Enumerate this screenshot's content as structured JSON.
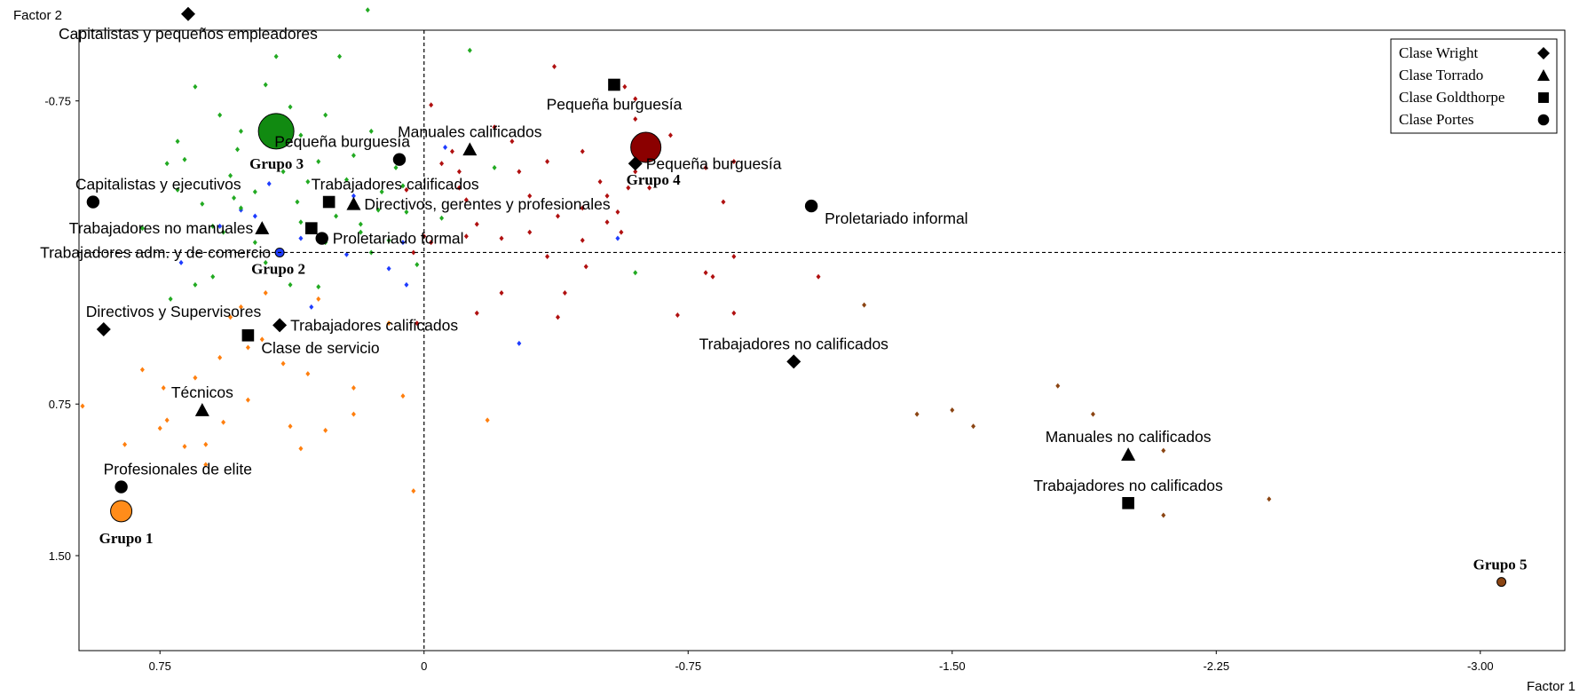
{
  "chart_data": {
    "type": "scatter",
    "xlabel": "Factor 1",
    "ylabel": "Factor 2",
    "xlim": [
      0.98,
      -3.24
    ],
    "ylim": [
      1.97,
      -1.1
    ],
    "x_ticks": [
      {
        "v": 0.75,
        "label": "0.75"
      },
      {
        "v": 0,
        "label": "0"
      },
      {
        "v": -0.75,
        "label": "-0.75"
      },
      {
        "v": -1.5,
        "label": "-1.50"
      },
      {
        "v": -2.25,
        "label": "-2.25"
      },
      {
        "v": -3.0,
        "label": "-3.00"
      }
    ],
    "y_ticks": [
      {
        "v": -0.75,
        "label": "-0.75"
      },
      {
        "v": 0.75,
        "label": "0.75"
      },
      {
        "v": 1.5,
        "label": "1.50"
      }
    ],
    "grid": false,
    "reference_lines": {
      "x": 0,
      "y": 0
    },
    "legend": {
      "placement": "top-right",
      "entries": [
        {
          "name": "Clase Wright",
          "marker": "diamond"
        },
        {
          "name": "Clase Torrado",
          "marker": "triangle"
        },
        {
          "name": "Clase Goldthorpe",
          "marker": "square"
        },
        {
          "name": "Clase Portes",
          "marker": "circle"
        }
      ]
    },
    "classes": [
      {
        "x": 0.67,
        "y": -1.18,
        "marker": "diamond",
        "label": "Capitalistas y pequeños empleadores",
        "label_pos": "below"
      },
      {
        "x": 0.91,
        "y": 0.38,
        "marker": "diamond",
        "label": "Directivos y Supervisores",
        "label_pos": "above-right"
      },
      {
        "x": 0.41,
        "y": 0.36,
        "marker": "diamond",
        "label": "Trabajadores calificados",
        "label_pos": "right"
      },
      {
        "x": -1.05,
        "y": 0.54,
        "marker": "diamond",
        "label": "Trabajadores no calificados",
        "label_pos": "above"
      },
      {
        "x": -0.6,
        "y": -0.44,
        "marker": "diamond",
        "label": "Pequeña burguesía",
        "label_pos": "right"
      },
      {
        "x": 0.46,
        "y": -0.12,
        "marker": "triangle",
        "label": "Trabajadores no manuales",
        "label_pos": "left"
      },
      {
        "x": 0.2,
        "y": -0.24,
        "marker": "triangle",
        "label": "Directivos, gerentes y profesionales",
        "label_pos": "right"
      },
      {
        "x": -0.13,
        "y": -0.51,
        "marker": "triangle",
        "label": "Manuales calificados",
        "label_pos": "above"
      },
      {
        "x": 0.63,
        "y": 0.78,
        "marker": "triangle",
        "label": "Técnicos",
        "label_pos": "above"
      },
      {
        "x": -2.0,
        "y": 1.0,
        "marker": "triangle",
        "label": "Manuales no calificados",
        "label_pos": "above"
      },
      {
        "x": 0.27,
        "y": -0.25,
        "marker": "square",
        "label": "Trabajadores calificados",
        "label_pos": "above-right"
      },
      {
        "x": 0.32,
        "y": -0.12,
        "marker": "square",
        "label": "",
        "label_pos": "none"
      },
      {
        "x": 0.5,
        "y": 0.41,
        "marker": "square",
        "label": "Clase de servicio",
        "label_pos": "below-right"
      },
      {
        "x": -0.54,
        "y": -0.83,
        "marker": "square",
        "label": "Pequeña burguesía",
        "label_pos": "below"
      },
      {
        "x": -2.0,
        "y": 1.24,
        "marker": "square",
        "label": "Trabajadores no calificados",
        "label_pos": "above"
      },
      {
        "x": 0.94,
        "y": -0.25,
        "marker": "circle",
        "label": "Capitalistas y ejecutivos",
        "label_pos": "above-right"
      },
      {
        "x": 0.07,
        "y": -0.46,
        "marker": "circle",
        "label": "Pequeña burguesía",
        "label_pos": "above-left"
      },
      {
        "x": 0.29,
        "y": -0.07,
        "marker": "circle",
        "label": "Proletariado formal",
        "label_pos": "right"
      },
      {
        "x": -1.1,
        "y": -0.23,
        "marker": "circle",
        "label": "Proletariado informal",
        "label_pos": "below-right"
      },
      {
        "x": 0.86,
        "y": 1.16,
        "marker": "circle",
        "label": "Profesionales de elite",
        "label_pos": "above-right"
      },
      {
        "x": 0.41,
        "y": 0.0,
        "marker": "none",
        "label": "Trabajadores adm. y de comercio",
        "label_pos": "left"
      }
    ],
    "groups": [
      {
        "name": "Grupo 1",
        "x": 0.86,
        "y": 1.28,
        "color": "#ff8c1a",
        "size": 12,
        "label_dx": -25,
        "label_dy": 36
      },
      {
        "name": "Grupo 2",
        "x": 0.41,
        "y": 0.0,
        "color": "#1e3cff",
        "size": 5,
        "label_dx": -32,
        "label_dy": 24
      },
      {
        "name": "Grupo 3",
        "x": 0.42,
        "y": -0.6,
        "color": "#118a11",
        "size": 20,
        "label_dx": -30,
        "label_dy": 42
      },
      {
        "name": "Grupo 4",
        "x": -0.63,
        "y": -0.52,
        "color": "#8b0000",
        "size": 17,
        "label_dx": -22,
        "label_dy": 42
      },
      {
        "name": "Grupo 5",
        "x": -3.06,
        "y": 1.63,
        "color": "#8b4513",
        "size": 5,
        "label_dx": -32,
        "label_dy": -14
      }
    ],
    "series": [
      {
        "name": "Grupo 1",
        "color": "#ff7f0e",
        "points": [
          [
            0.97,
            0.76
          ],
          [
            0.85,
            0.95
          ],
          [
            0.8,
            0.58
          ],
          [
            0.74,
            0.67
          ],
          [
            0.75,
            0.87
          ],
          [
            0.73,
            0.83
          ],
          [
            0.65,
            0.62
          ],
          [
            0.62,
            1.05
          ],
          [
            0.57,
            0.84
          ],
          [
            0.5,
            0.47
          ],
          [
            0.46,
            0.43
          ],
          [
            0.38,
            0.86
          ],
          [
            0.35,
            0.97
          ],
          [
            0.28,
            0.88
          ],
          [
            0.2,
            0.67
          ],
          [
            0.1,
            0.35
          ],
          [
            0.06,
            0.71
          ],
          [
            0.62,
            0.95
          ],
          [
            0.58,
            0.52
          ],
          [
            0.5,
            0.73
          ],
          [
            0.4,
            0.55
          ],
          [
            0.33,
            0.6
          ],
          [
            0.55,
            0.32
          ],
          [
            0.45,
            0.2
          ],
          [
            0.3,
            0.23
          ],
          [
            0.2,
            0.8
          ],
          [
            0.03,
            1.18
          ],
          [
            -0.18,
            0.83
          ],
          [
            0.68,
            0.96
          ],
          [
            0.52,
            0.27
          ]
        ]
      },
      {
        "name": "Grupo 2",
        "color": "#1e3cff",
        "points": [
          [
            0.58,
            -0.13
          ],
          [
            0.52,
            -0.21
          ],
          [
            0.69,
            0.05
          ],
          [
            0.44,
            -0.34
          ],
          [
            0.35,
            -0.07
          ],
          [
            0.32,
            0.27
          ],
          [
            0.22,
            0.01
          ],
          [
            0.1,
            0.08
          ],
          [
            0.05,
            0.16
          ],
          [
            0.06,
            -0.05
          ],
          [
            -0.06,
            -0.52
          ],
          [
            -0.27,
            0.45
          ],
          [
            -0.55,
            -0.07
          ],
          [
            0.48,
            -0.18
          ],
          [
            0.2,
            -0.28
          ]
        ]
      },
      {
        "name": "Grupo 3",
        "color": "#22aa22",
        "points": [
          [
            0.8,
            -0.12
          ],
          [
            0.73,
            -0.44
          ],
          [
            0.68,
            -0.46
          ],
          [
            0.65,
            -0.82
          ],
          [
            0.58,
            -0.68
          ],
          [
            0.55,
            -0.38
          ],
          [
            0.53,
            -0.51
          ],
          [
            0.52,
            -0.22
          ],
          [
            0.45,
            -0.83
          ],
          [
            0.42,
            -0.97
          ],
          [
            0.38,
            -0.72
          ],
          [
            0.35,
            -0.58
          ],
          [
            0.33,
            -0.35
          ],
          [
            0.3,
            -0.45
          ],
          [
            0.28,
            -0.05
          ],
          [
            0.25,
            -0.18
          ],
          [
            0.22,
            -0.36
          ],
          [
            0.2,
            -0.48
          ],
          [
            0.18,
            -0.14
          ],
          [
            0.15,
            0.0
          ],
          [
            0.12,
            -0.3
          ],
          [
            0.1,
            -0.06
          ],
          [
            0.08,
            -0.42
          ],
          [
            0.05,
            -0.2
          ],
          [
            0.02,
            0.06
          ],
          [
            0.28,
            -0.68
          ],
          [
            0.15,
            -0.6
          ],
          [
            0.24,
            -0.97
          ],
          [
            0.16,
            -1.2
          ],
          [
            -0.13,
            -1.0
          ],
          [
            -0.2,
            -0.42
          ],
          [
            0.6,
            0.12
          ],
          [
            0.63,
            -0.24
          ],
          [
            0.45,
            0.05
          ],
          [
            0.38,
            0.16
          ],
          [
            0.3,
            0.17
          ],
          [
            0.65,
            0.16
          ],
          [
            0.72,
            0.23
          ],
          [
            0.54,
            -0.27
          ],
          [
            0.48,
            -0.05
          ],
          [
            0.35,
            -0.15
          ],
          [
            0.18,
            -0.1
          ],
          [
            0.13,
            -0.21
          ],
          [
            -0.6,
            0.1
          ],
          [
            0.7,
            -0.55
          ],
          [
            0.6,
            -0.13
          ],
          [
            0.4,
            -0.4
          ],
          [
            0.26,
            -0.26
          ],
          [
            0.06,
            -0.33
          ],
          [
            -0.05,
            -0.17
          ],
          [
            0.7,
            -0.31
          ],
          [
            0.57,
            -0.1
          ],
          [
            0.48,
            -0.3
          ],
          [
            0.36,
            -0.25
          ],
          [
            0.52,
            -0.6
          ]
        ]
      },
      {
        "name": "Grupo 4",
        "color": "#b01010",
        "points": [
          [
            -0.2,
            -0.62
          ],
          [
            -0.25,
            -0.55
          ],
          [
            -0.27,
            -0.4
          ],
          [
            -0.3,
            -0.28
          ],
          [
            -0.35,
            -0.45
          ],
          [
            -0.37,
            -0.92
          ],
          [
            -0.38,
            -0.18
          ],
          [
            -0.45,
            -0.5
          ],
          [
            -0.5,
            -0.35
          ],
          [
            -0.55,
            -0.2
          ],
          [
            -0.57,
            -0.82
          ],
          [
            -0.6,
            -0.4
          ],
          [
            -0.6,
            -0.66
          ],
          [
            -0.64,
            -0.32
          ],
          [
            -0.7,
            -0.58
          ],
          [
            -0.56,
            -0.1
          ],
          [
            -0.58,
            -0.32
          ],
          [
            -0.8,
            -0.42
          ],
          [
            -0.85,
            -0.25
          ],
          [
            -0.88,
            -0.45
          ],
          [
            -0.35,
            0.02
          ],
          [
            -0.4,
            0.2
          ],
          [
            -0.45,
            -0.06
          ],
          [
            -0.52,
            -0.28
          ],
          [
            -0.3,
            -0.1
          ],
          [
            -0.22,
            -0.07
          ],
          [
            -0.12,
            -0.26
          ],
          [
            -0.1,
            -0.32
          ],
          [
            -0.1,
            -0.4
          ],
          [
            -0.08,
            -0.5
          ],
          [
            -0.05,
            -0.44
          ],
          [
            0.05,
            -0.31
          ],
          [
            -0.12,
            -0.08
          ],
          [
            -0.15,
            -0.14
          ],
          [
            -0.02,
            -0.05
          ],
          [
            0.03,
            0.0
          ],
          [
            -0.15,
            0.3
          ],
          [
            -0.22,
            0.2
          ],
          [
            0.02,
            0.35
          ],
          [
            -0.38,
            0.32
          ],
          [
            -0.45,
            -0.22
          ],
          [
            -0.6,
            -0.76
          ],
          [
            -0.88,
            0.02
          ],
          [
            -0.82,
            0.12
          ],
          [
            -0.72,
            0.31
          ],
          [
            -0.88,
            0.3
          ],
          [
            -1.12,
            0.12
          ],
          [
            -0.8,
            0.1
          ],
          [
            -0.6,
            -0.48
          ],
          [
            -0.02,
            -0.73
          ],
          [
            0.0,
            -0.08
          ],
          [
            -0.46,
            0.07
          ],
          [
            -0.52,
            -0.15
          ]
        ]
      },
      {
        "name": "Grupo 5",
        "color": "#8b4513",
        "points": [
          [
            -1.25,
            0.26
          ],
          [
            -1.4,
            0.8
          ],
          [
            -1.5,
            0.78
          ],
          [
            -1.56,
            0.86
          ],
          [
            -1.8,
            0.66
          ],
          [
            -1.9,
            0.8
          ],
          [
            -2.1,
            0.98
          ],
          [
            -2.1,
            1.3
          ],
          [
            -2.4,
            1.22
          ],
          [
            -3.06,
            1.63
          ]
        ]
      }
    ]
  }
}
